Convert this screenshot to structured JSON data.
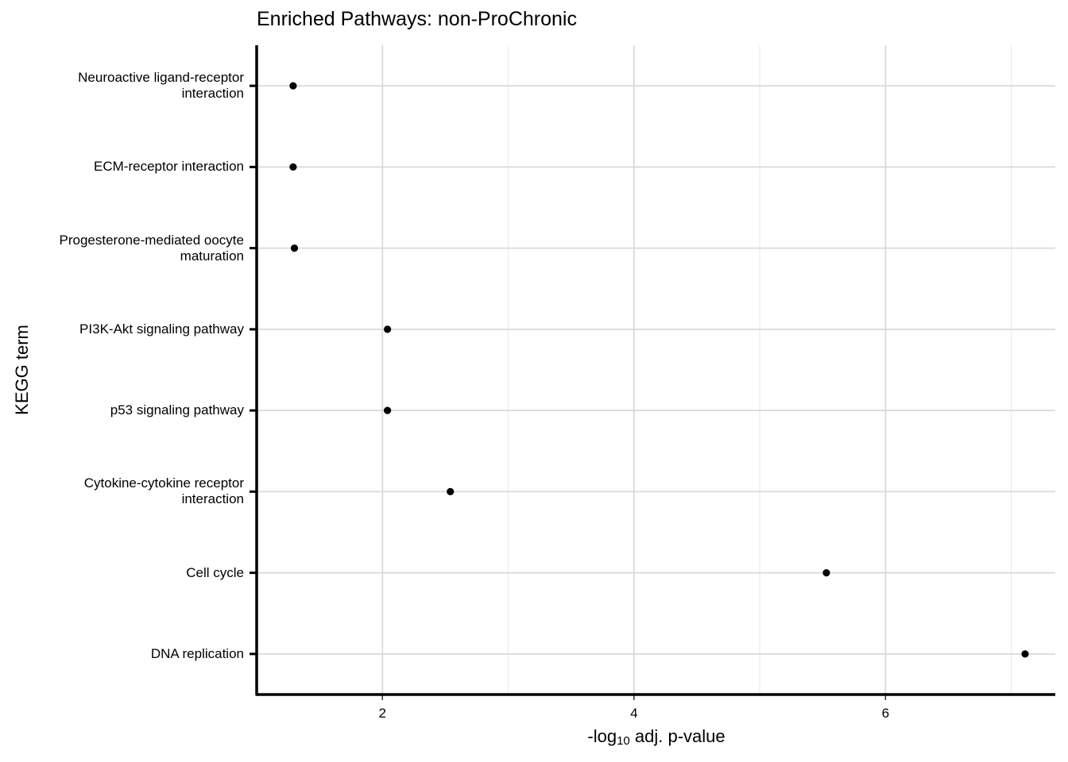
{
  "chart_data": {
    "type": "scatter",
    "title": "Enriched Pathways: non-ProChronic",
    "xlabel_prefix": "-log",
    "xlabel_sub": "10",
    "xlabel_suffix": " adj. p-value",
    "ylabel": "KEGG term",
    "xlim": [
      1.0,
      7.35
    ],
    "xticks": [
      2,
      4,
      6
    ],
    "grid": true,
    "categories": [
      "Neuroactive ligand-receptor interaction",
      "ECM-receptor interaction",
      "Progesterone-mediated oocyte maturation",
      "PI3K-Akt signaling pathway",
      "p53 signaling pathway",
      "Cytokine-cytokine receptor interaction",
      "Cell cycle",
      "DNA replication"
    ],
    "category_lines": [
      [
        "Neuroactive ligand-receptor",
        "interaction"
      ],
      [
        "ECM-receptor interaction"
      ],
      [
        "Progesterone-mediated oocyte",
        "maturation"
      ],
      [
        "PI3K-Akt signaling pathway"
      ],
      [
        "p53 signaling pathway"
      ],
      [
        "Cytokine-cytokine receptor",
        "interaction"
      ],
      [
        "Cell cycle"
      ],
      [
        "DNA replication"
      ]
    ],
    "values": [
      1.29,
      1.29,
      1.3,
      2.04,
      2.04,
      2.54,
      5.53,
      7.11
    ],
    "point_color": "#000000",
    "grid_color": "#d9d9d9"
  }
}
